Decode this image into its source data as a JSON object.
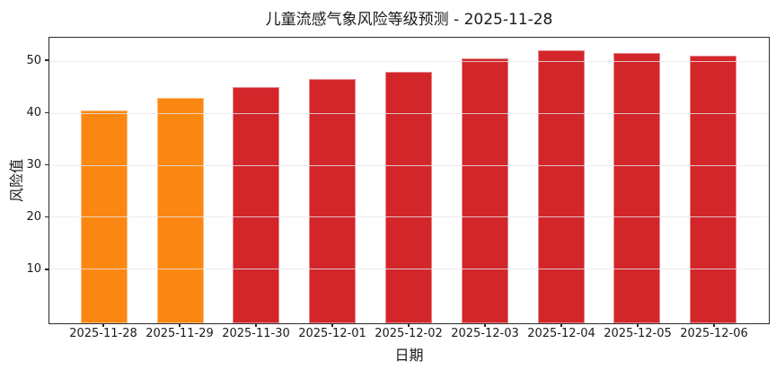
{
  "chart_data": {
    "type": "bar",
    "title": "儿童流感气象风险等级预测 - 2025-11-28",
    "xlabel": "日期",
    "ylabel": "风险值",
    "categories": [
      "2025-11-28",
      "2025-11-29",
      "2025-11-30",
      "2025-12-01",
      "2025-12-02",
      "2025-12-03",
      "2025-12-04",
      "2025-12-05",
      "2025-12-06"
    ],
    "values": [
      40.5,
      43,
      45,
      46.5,
      48,
      50.5,
      52,
      51.5,
      51
    ],
    "bar_colors": [
      "#fb8712",
      "#fb8712",
      "#d2262b",
      "#d2262b",
      "#d2262b",
      "#d2262b",
      "#d2262b",
      "#d2262b",
      "#d2262b"
    ],
    "yticks": [
      10,
      20,
      30,
      40,
      50
    ],
    "ylim": [
      -0.5,
      54.5
    ],
    "grid": true,
    "grid_over_bars": true,
    "legend": false
  },
  "colors": {
    "orange_bar": "#fb8712",
    "red_bar": "#d2262b",
    "grid": "#e7e7e7",
    "spine": "#2a2a2a",
    "text": "#1a1a1a",
    "background": "#ffffff"
  }
}
